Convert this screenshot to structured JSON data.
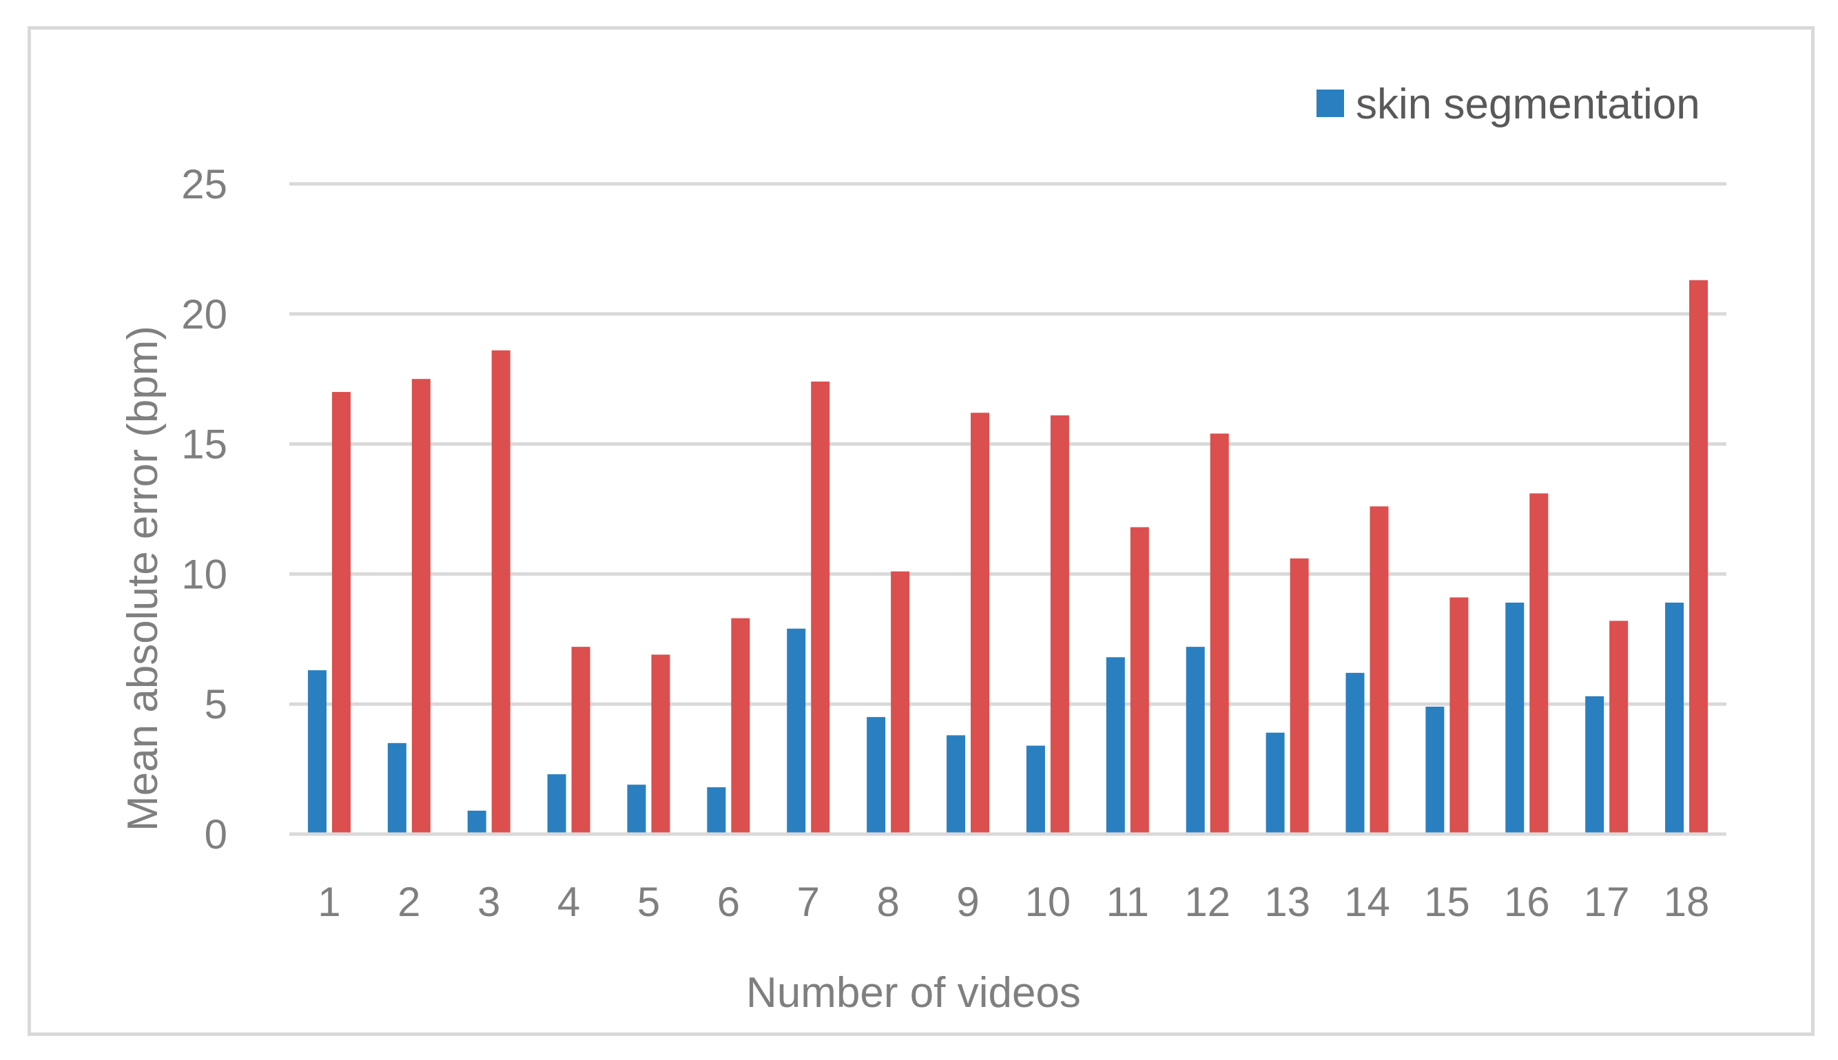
{
  "chart_data": {
    "type": "bar",
    "xlabel": "Number of videos",
    "ylabel": "Mean absolute error (bpm)",
    "ylim": [
      0,
      25
    ],
    "yticks": [
      0,
      5,
      10,
      15,
      20,
      25
    ],
    "grid": true,
    "legend_position": "top-right",
    "categories": [
      "1",
      "2",
      "3",
      "4",
      "5",
      "6",
      "7",
      "8",
      "9",
      "10",
      "11",
      "12",
      "13",
      "14",
      "15",
      "16",
      "17",
      "18"
    ],
    "series": [
      {
        "name": "skin segmentation",
        "color": "#2a7fc0",
        "values": [
          6.3,
          3.5,
          0.9,
          2.3,
          1.9,
          1.8,
          7.9,
          4.5,
          3.8,
          3.4,
          6.8,
          7.2,
          3.9,
          6.2,
          4.9,
          8.9,
          5.3,
          8.9
        ]
      },
      {
        "color": "#db4f4f",
        "values": [
          17.0,
          17.5,
          18.6,
          7.2,
          6.9,
          8.3,
          17.4,
          10.1,
          16.2,
          16.1,
          11.8,
          15.4,
          10.6,
          12.6,
          9.1,
          13.1,
          8.2,
          21.3
        ]
      }
    ]
  }
}
